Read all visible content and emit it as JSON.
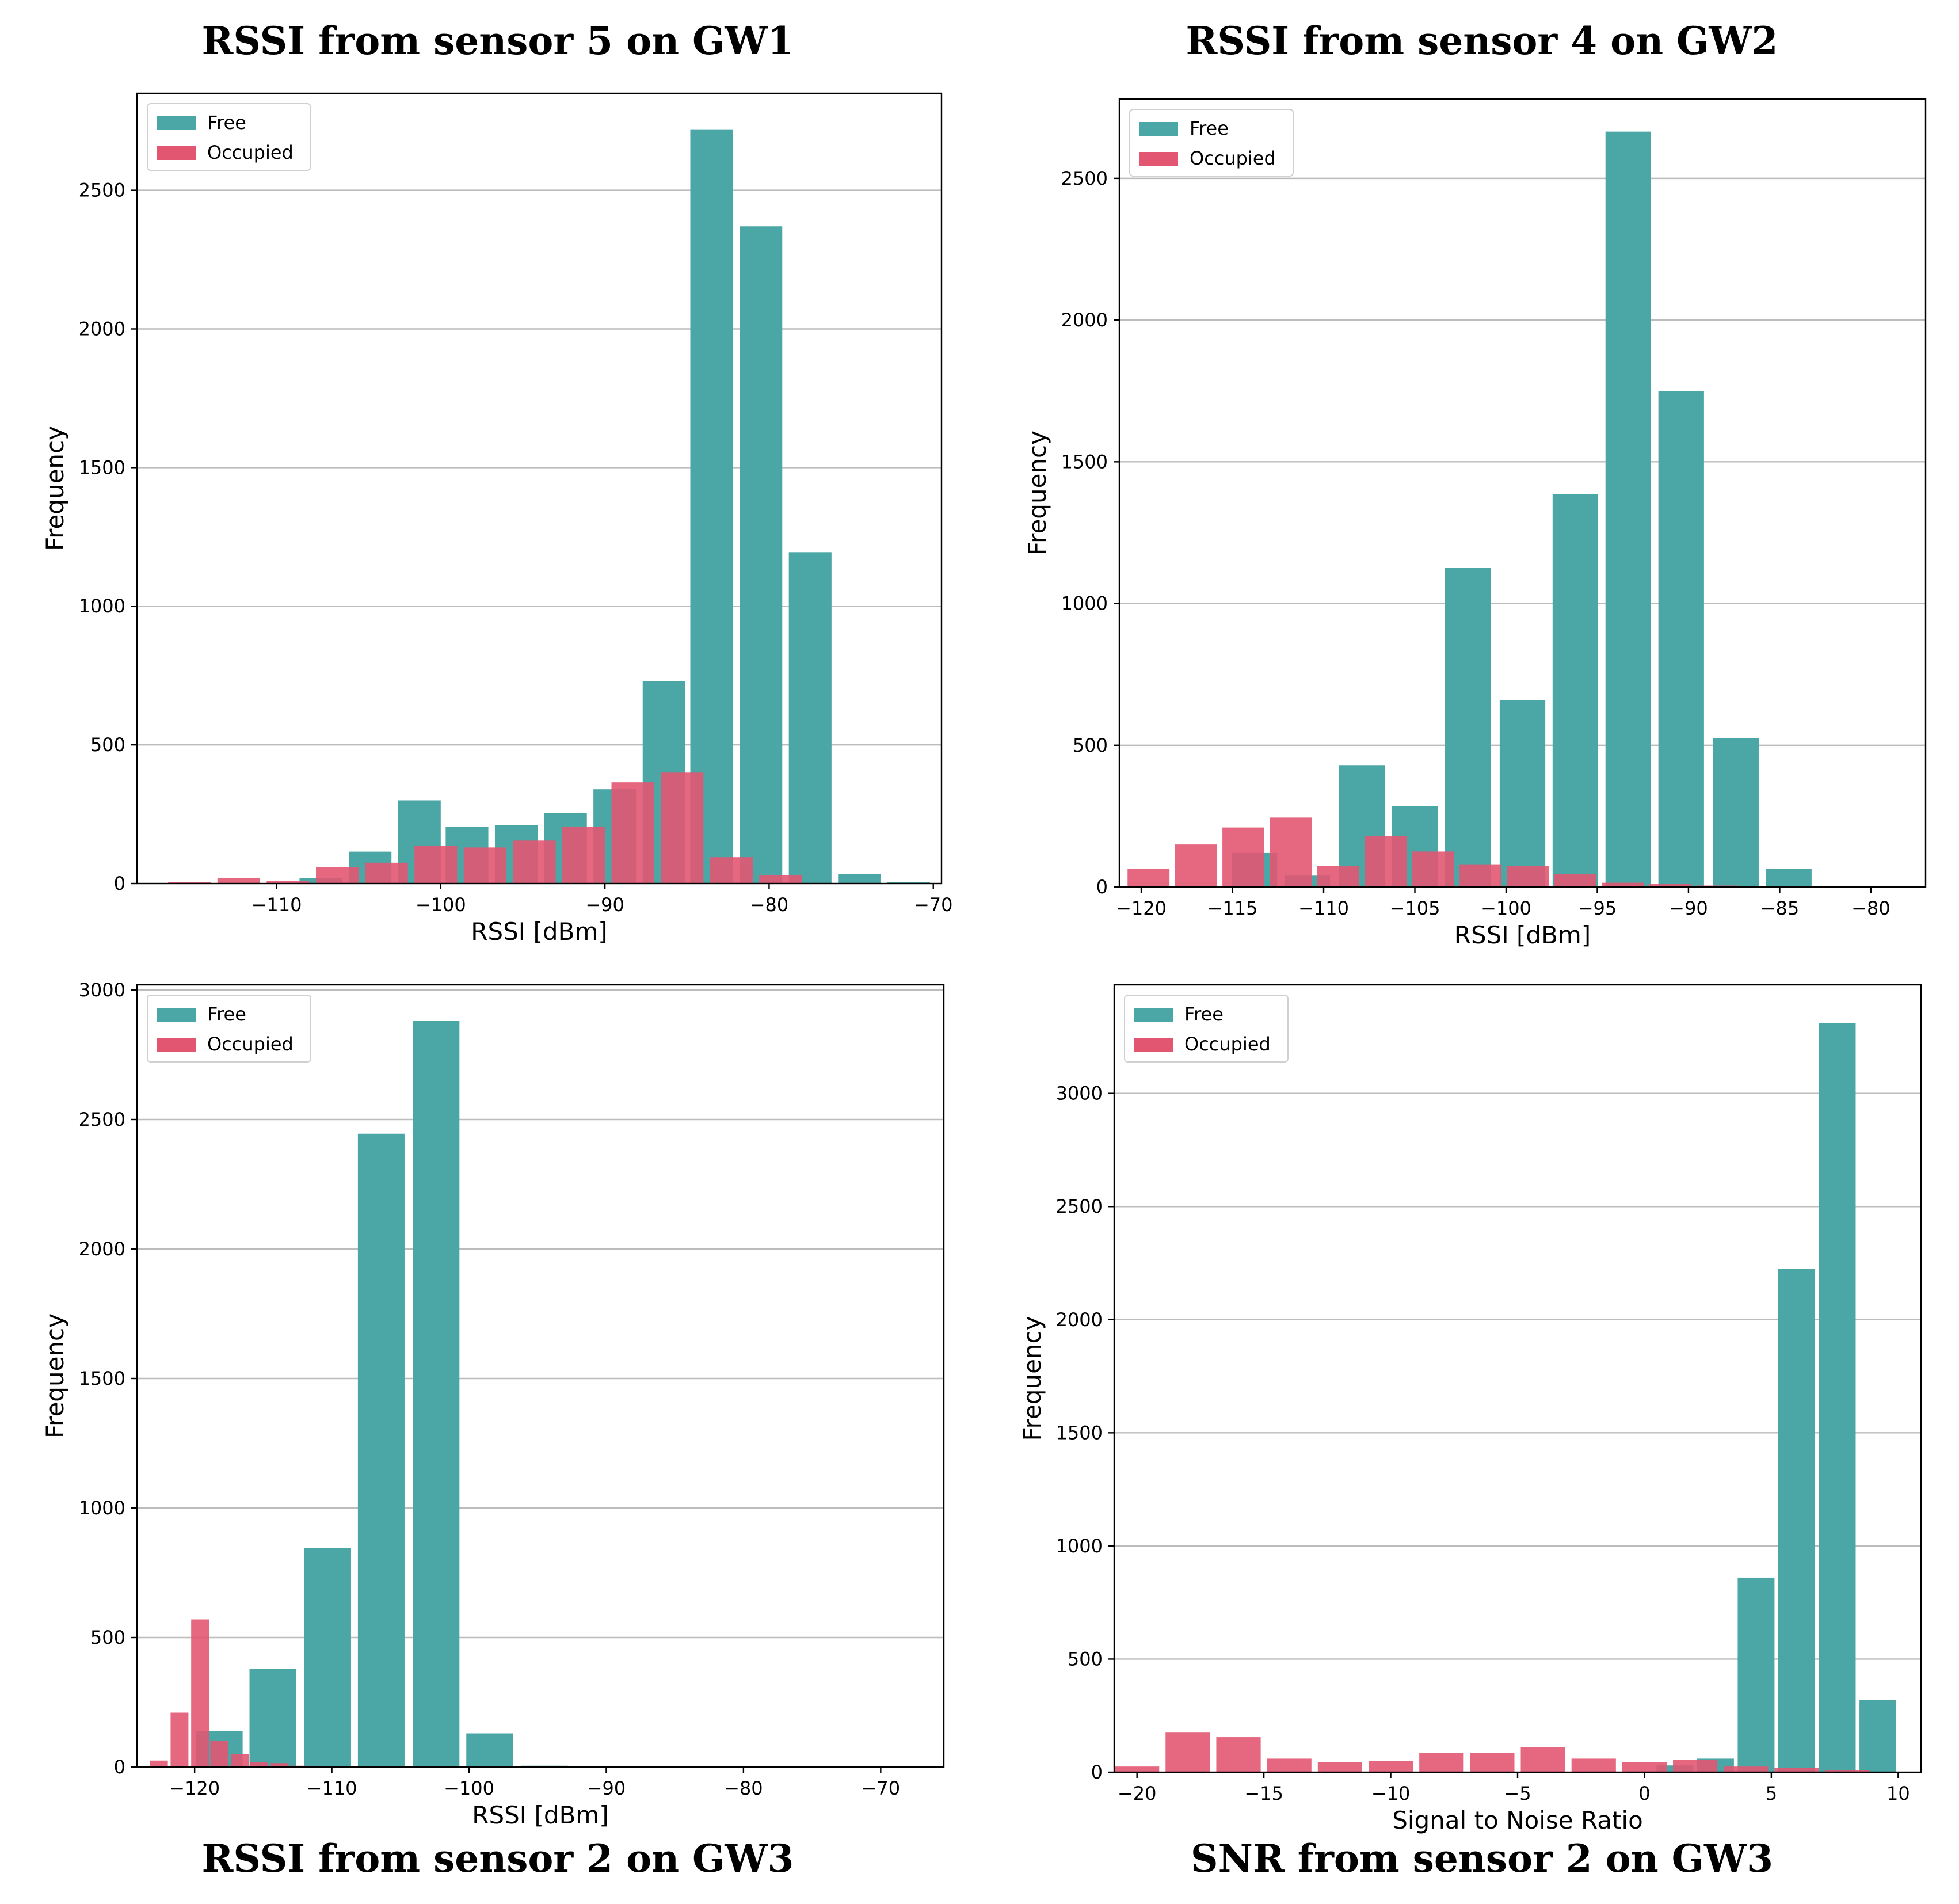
{
  "colors": {
    "free": "#4ba6a6",
    "occupied": "#e25672",
    "grid": "#bcbcbc",
    "axis": "#000000"
  },
  "chart_data": [
    {
      "type": "bar",
      "title": "RSSI from sensor 5 on GW1",
      "xlabel": "RSSI [dBm]",
      "ylabel": "Frequency",
      "xlim": [
        -118.5,
        -69.5
      ],
      "ylim": [
        0,
        2850
      ],
      "xticks": [
        -110,
        -100,
        -90,
        -80,
        -70
      ],
      "xtick_labels": [
        "−110",
        "−100",
        "−90",
        "−80",
        "−70"
      ],
      "yticks": [
        0,
        500,
        1000,
        1500,
        2000,
        2500
      ],
      "grid": "y",
      "legend": "top-left",
      "series": [
        {
          "name": "Free",
          "bar_width": 2.6,
          "x": [
            -107.3,
            -104.3,
            -101.3,
            -98.4,
            -95.4,
            -92.4,
            -89.4,
            -86.4,
            -83.5,
            -80.5,
            -77.5,
            -74.5,
            -71.5
          ],
          "values": [
            20,
            115,
            300,
            205,
            210,
            255,
            340,
            730,
            2720,
            2370,
            1195,
            35,
            5
          ]
        },
        {
          "name": "Occupied",
          "bar_width": 2.6,
          "x": [
            -115.3,
            -112.3,
            -109.3,
            -106.3,
            -103.3,
            -100.3,
            -97.3,
            -94.3,
            -91.3,
            -88.3,
            -85.3,
            -82.3,
            -79.3
          ],
          "values": [
            5,
            20,
            10,
            60,
            75,
            135,
            130,
            155,
            205,
            365,
            400,
            95,
            30
          ]
        }
      ]
    },
    {
      "type": "bar",
      "title": "RSSI from sensor 4 on GW2",
      "xlabel": "RSSI [dBm]",
      "ylabel": "Frequency",
      "xlim": [
        -121.2,
        -77.0
      ],
      "ylim": [
        0,
        2780
      ],
      "xticks": [
        -120,
        -115,
        -110,
        -105,
        -100,
        -95,
        -90,
        -85,
        -80
      ],
      "xtick_labels": [
        "−120",
        "−115",
        "−110",
        "−105",
        "−100",
        "−95",
        "−90",
        "−85",
        "−80"
      ],
      "yticks": [
        0,
        500,
        1000,
        1500,
        2000,
        2500
      ],
      "grid": "y",
      "legend": "top-left",
      "series": [
        {
          "name": "Free",
          "bar_width": 2.5,
          "x": [
            -113.8,
            -110.9,
            -107.9,
            -105.0,
            -102.1,
            -99.1,
            -96.2,
            -93.3,
            -90.4,
            -87.4,
            -84.5
          ],
          "values": [
            120,
            40,
            430,
            285,
            1125,
            660,
            1385,
            2665,
            1750,
            525,
            65
          ]
        },
        {
          "name": "Occupied",
          "bar_width": 2.3,
          "x": [
            -119.6,
            -117.0,
            -114.4,
            -111.8,
            -109.2,
            -106.6,
            -104.0,
            -101.4,
            -98.8,
            -96.2,
            -93.6,
            -91.0,
            -88.4
          ],
          "values": [
            65,
            150,
            210,
            245,
            75,
            180,
            125,
            80,
            75,
            45,
            15,
            10,
            5
          ]
        }
      ]
    },
    {
      "type": "bar",
      "title": "RSSI from sensor 2 on GW3",
      "xlabel": "RSSI [dBm]",
      "ylabel": "Frequency",
      "xlim": [
        -124.2,
        -65.4
      ],
      "ylim": [
        0,
        3020
      ],
      "xticks": [
        -120,
        -110,
        -100,
        -90,
        -80,
        -70
      ],
      "xtick_labels": [
        "−120",
        "−110",
        "−100",
        "−90",
        "−80",
        "−70"
      ],
      "yticks": [
        0,
        500,
        1000,
        1500,
        2000,
        2500,
        3000
      ],
      "grid": "y",
      "legend": "top-left",
      "series": [
        {
          "name": "Free",
          "bar_width": 3.4,
          "x": [
            -118.2,
            -114.3,
            -110.3,
            -106.4,
            -102.4,
            -98.5,
            -94.5,
            -90.5
          ],
          "values": [
            140,
            380,
            845,
            2445,
            2880,
            130,
            5,
            2
          ]
        },
        {
          "name": "Occupied",
          "bar_width": 1.3,
          "x": [
            -122.6,
            -121.1,
            -119.6,
            -118.2,
            -116.7,
            -115.3,
            -113.8,
            -112.3
          ],
          "values": [
            25,
            210,
            570,
            100,
            50,
            20,
            15,
            5
          ]
        }
      ]
    },
    {
      "type": "bar",
      "title": "SNR from sensor 2 on GW3",
      "xlabel": "Signal to Noise Ratio",
      "ylabel": "Frequency",
      "xlim": [
        -20.9,
        10.9
      ],
      "ylim": [
        0,
        3480
      ],
      "xticks": [
        -20,
        -15,
        -10,
        -5,
        0,
        5,
        10
      ],
      "xtick_labels": [
        "−20",
        "−15",
        "−10",
        "−5",
        "0",
        "5",
        "10"
      ],
      "yticks": [
        0,
        500,
        1000,
        1500,
        2000,
        2500,
        3000
      ],
      "grid": "y",
      "legend": "top-left",
      "series": [
        {
          "name": "Free",
          "bar_width": 1.45,
          "x": [
            1.2,
            2.8,
            4.4,
            6.0,
            7.6,
            9.2
          ],
          "values": [
            30,
            60,
            860,
            2225,
            3310,
            320
          ]
        },
        {
          "name": "Occupied",
          "bar_width": 1.75,
          "x": [
            -20.0,
            -18.0,
            -16.0,
            -14.0,
            -12.0,
            -10.0,
            -8.0,
            -6.0,
            -4.0,
            -2.0,
            0.0,
            2.0,
            4.0,
            6.0,
            8.0
          ],
          "values": [
            25,
            175,
            155,
            60,
            45,
            50,
            85,
            85,
            110,
            60,
            45,
            55,
            25,
            20,
            10
          ]
        }
      ]
    }
  ]
}
